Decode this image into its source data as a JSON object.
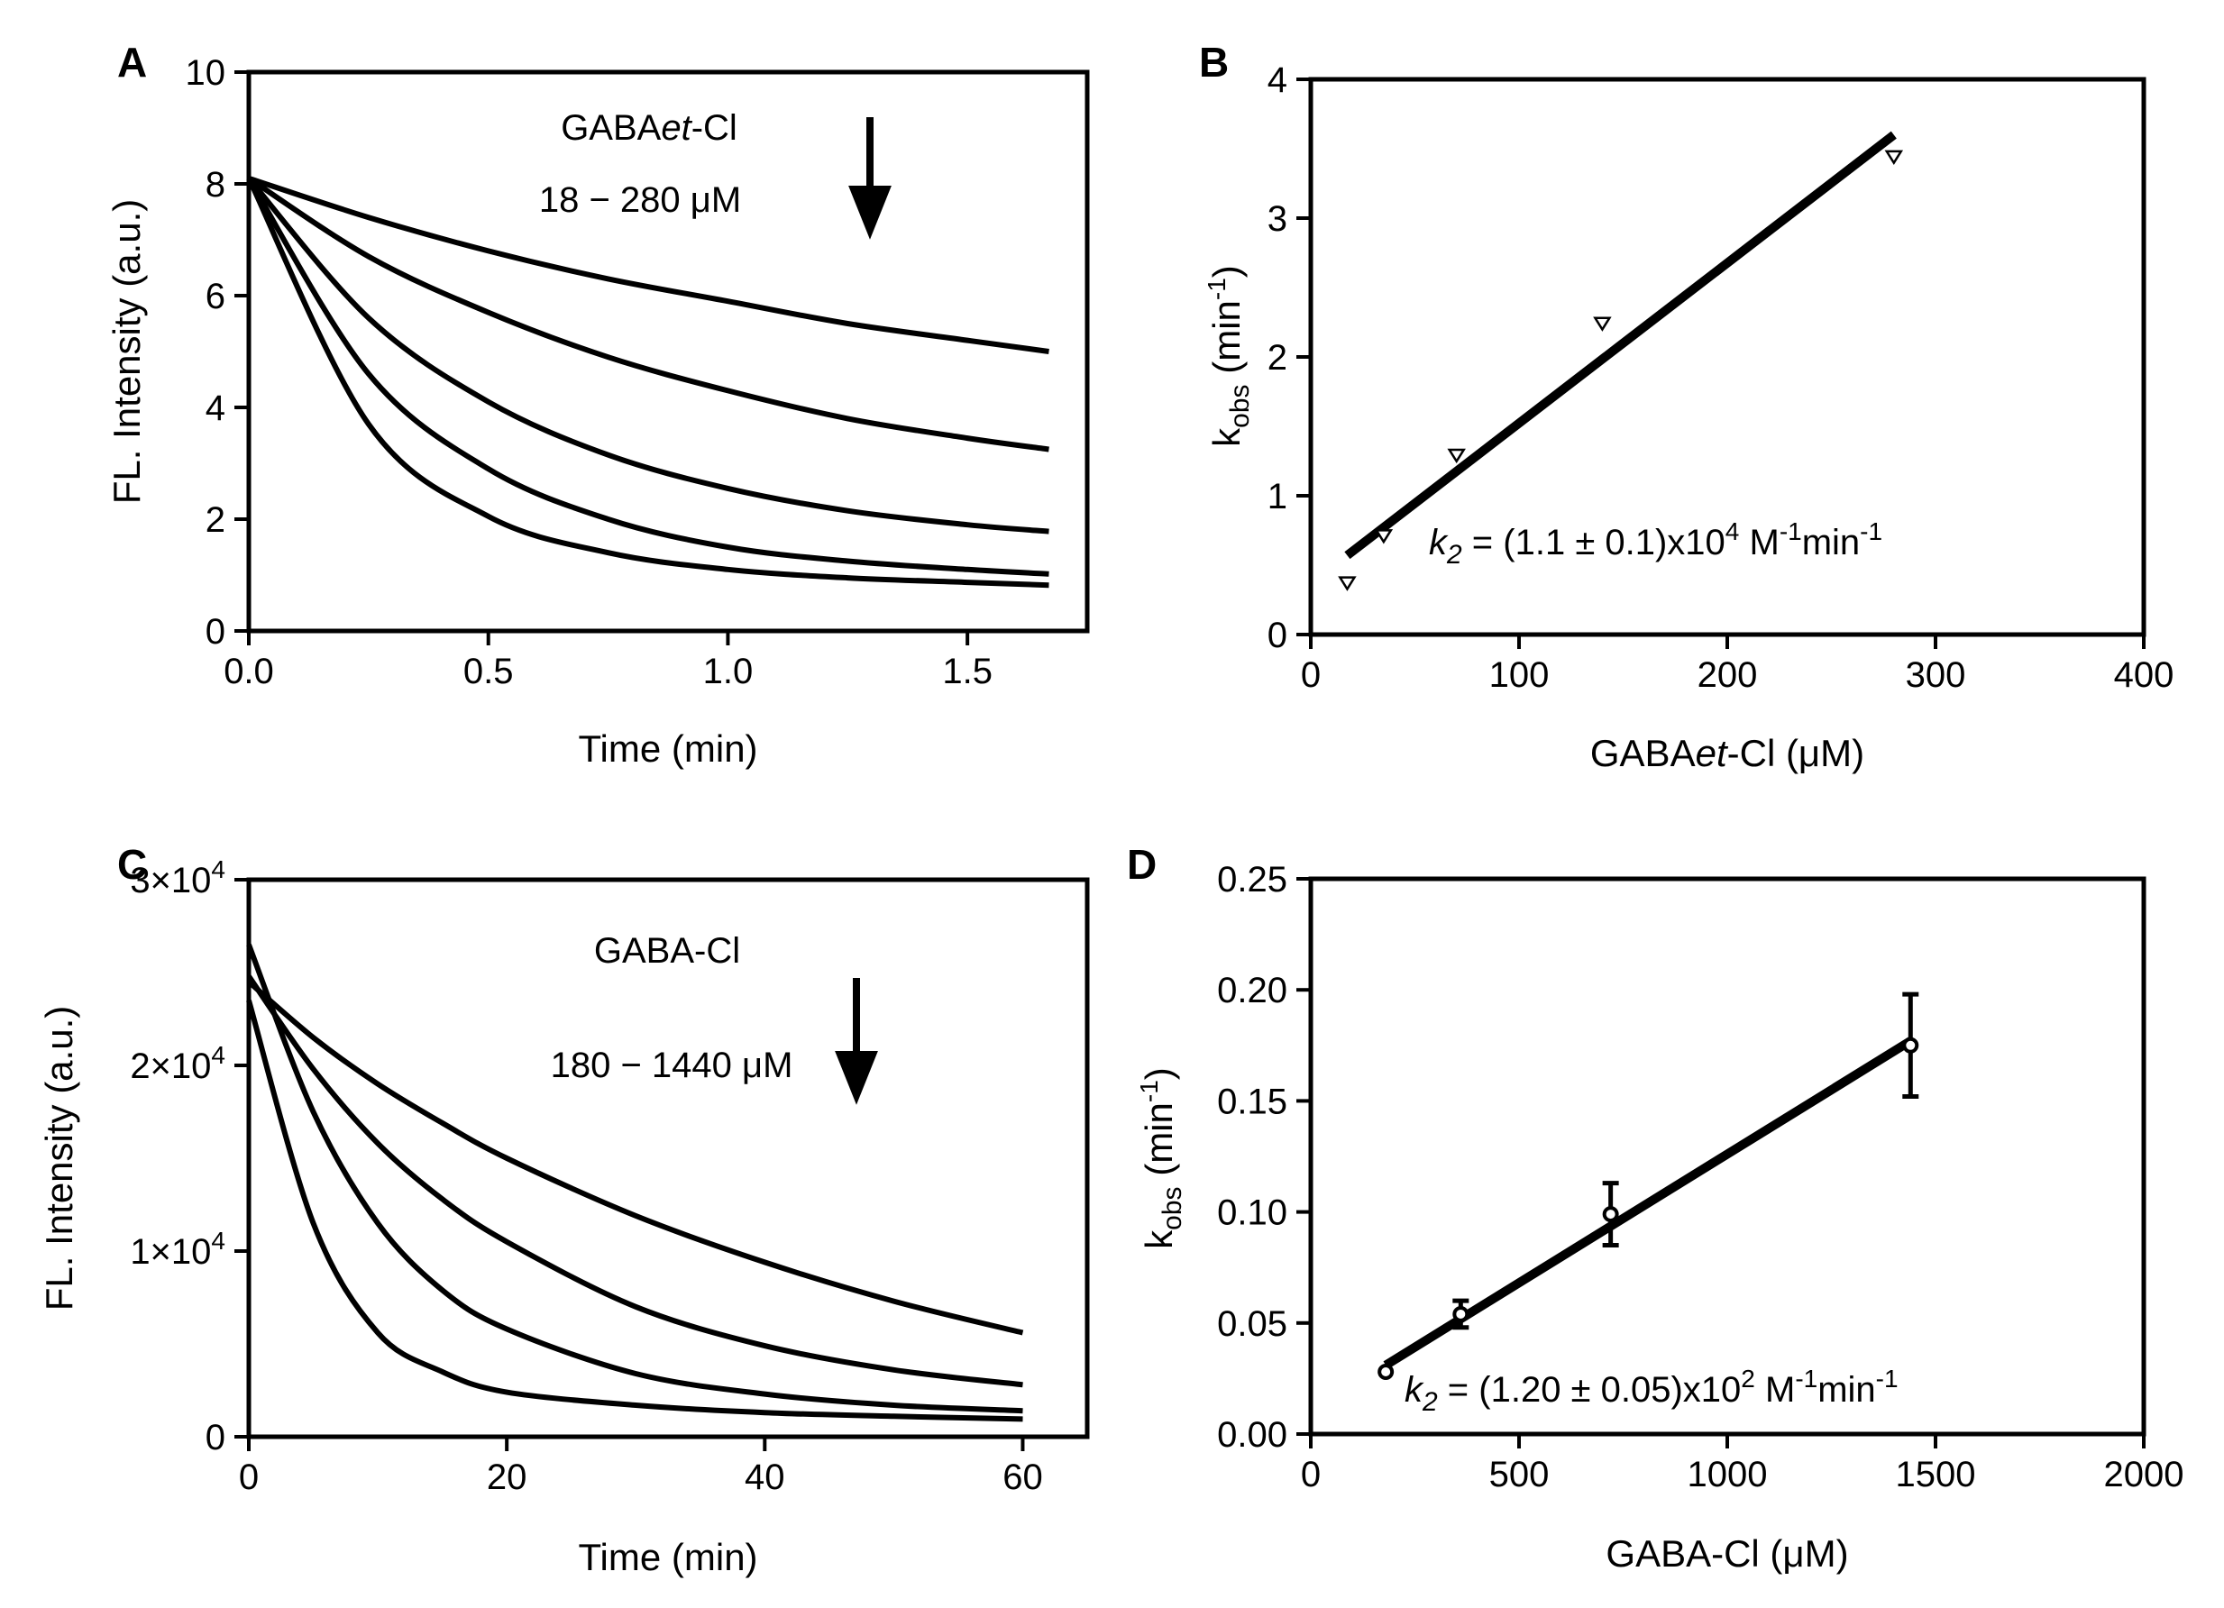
{
  "chart_data": [
    {
      "panel": "A",
      "type": "line",
      "xlabel": "Time (min)",
      "ylabel": "FL. Intensity  (a.u.)",
      "xlim": [
        0,
        1.75
      ],
      "ylim": [
        0,
        10
      ],
      "xticks": [
        0,
        0.5,
        1.0,
        1.5
      ],
      "xtick_labels": [
        "0.0",
        "0.5",
        "1.0",
        "1.5"
      ],
      "yticks": [
        0,
        2,
        4,
        6,
        8,
        10
      ],
      "ytick_labels": [
        "0",
        "2",
        "4",
        "6",
        "8",
        "10"
      ],
      "annotation_lines": [
        "GABAet-Cl",
        "18 − 280 μM"
      ],
      "series": [
        {
          "x": [
            0,
            0.25,
            0.5,
            0.75,
            1.0,
            1.25,
            1.5,
            1.67
          ],
          "values": [
            8.1,
            7.4,
            6.8,
            6.3,
            5.9,
            5.5,
            5.2,
            5.0
          ]
        },
        {
          "x": [
            0,
            0.25,
            0.5,
            0.75,
            1.0,
            1.25,
            1.5,
            1.67
          ],
          "values": [
            8.1,
            6.7,
            5.7,
            4.9,
            4.3,
            3.8,
            3.45,
            3.25
          ]
        },
        {
          "x": [
            0,
            0.25,
            0.5,
            0.75,
            1.0,
            1.25,
            1.5,
            1.67
          ],
          "values": [
            8.1,
            5.6,
            4.1,
            3.15,
            2.55,
            2.15,
            1.9,
            1.78
          ]
        },
        {
          "x": [
            0,
            0.25,
            0.5,
            0.75,
            1.0,
            1.25,
            1.5,
            1.67
          ],
          "values": [
            8.1,
            4.6,
            2.9,
            2.0,
            1.5,
            1.25,
            1.1,
            1.02
          ]
        },
        {
          "x": [
            0,
            0.25,
            0.5,
            0.75,
            1.0,
            1.25,
            1.5,
            1.67
          ],
          "values": [
            8.1,
            3.7,
            2.05,
            1.4,
            1.1,
            0.95,
            0.87,
            0.82
          ]
        }
      ]
    },
    {
      "panel": "B",
      "type": "scatter",
      "xlabel": "GABAet-Cl (μM)",
      "ylabel": "kobs (min-1)",
      "xlim": [
        0,
        400
      ],
      "ylim": [
        0,
        4
      ],
      "xticks": [
        0,
        100,
        200,
        300,
        400
      ],
      "xtick_labels": [
        "0",
        "100",
        "200",
        "300",
        "400"
      ],
      "yticks": [
        0,
        1,
        2,
        3,
        4
      ],
      "ytick_labels": [
        "0",
        "1",
        "2",
        "3",
        "4"
      ],
      "points": {
        "x": [
          17.5,
          35,
          70,
          140,
          280
        ],
        "values": [
          0.38,
          0.72,
          1.3,
          2.25,
          3.45
        ]
      },
      "fit": {
        "x": [
          17.5,
          280
        ],
        "values": [
          0.57,
          3.6
        ]
      },
      "annotation": "k2 = (1.1 ± 0.1)x10^4 M^-1 min^-1"
    },
    {
      "panel": "C",
      "type": "line",
      "xlabel": "Time (min)",
      "ylabel": "FL. Intensity  (a.u.)",
      "xlim": [
        0,
        65
      ],
      "ylim": [
        0,
        30000
      ],
      "xticks": [
        0,
        20,
        40,
        60
      ],
      "xtick_labels": [
        "0",
        "20",
        "40",
        "60"
      ],
      "yticks": [
        0,
        10000,
        20000,
        30000
      ],
      "ytick_labels": [
        "0",
        "1×10^4",
        "2×10^4",
        "3×10^4"
      ],
      "annotation_lines": [
        "GABA-Cl",
        "180 − 1440 μM"
      ],
      "series": [
        {
          "x": [
            0,
            5,
            10,
            15,
            20,
            30,
            40,
            50,
            60
          ],
          "values": [
            24500,
            21500,
            19000,
            16900,
            15000,
            11900,
            9400,
            7300,
            5600
          ]
        },
        {
          "x": [
            0,
            5,
            10,
            15,
            20,
            30,
            40,
            50,
            60
          ],
          "values": [
            24800,
            19800,
            15800,
            12800,
            10500,
            7000,
            4900,
            3600,
            2800
          ]
        },
        {
          "x": [
            0,
            5,
            10,
            15,
            20,
            30,
            40,
            50,
            60
          ],
          "values": [
            26500,
            17500,
            11500,
            7900,
            5800,
            3400,
            2300,
            1700,
            1400
          ]
        },
        {
          "x": [
            0,
            5,
            10,
            15,
            20,
            30,
            40,
            50,
            60
          ],
          "values": [
            23500,
            11500,
            5600,
            3500,
            2400,
            1700,
            1300,
            1100,
            950
          ]
        }
      ]
    },
    {
      "panel": "D",
      "type": "scatter",
      "xlabel": "GABA-Cl (μM)",
      "ylabel": "kobs (min-1)",
      "xlim": [
        0,
        2000
      ],
      "ylim": [
        0,
        0.25
      ],
      "xticks": [
        0,
        500,
        1000,
        1500,
        2000
      ],
      "xtick_labels": [
        "0",
        "500",
        "1000",
        "1500",
        "2000"
      ],
      "yticks": [
        0,
        0.05,
        0.1,
        0.15,
        0.2,
        0.25
      ],
      "ytick_labels": [
        "0.00",
        "0.05",
        "0.10",
        "0.15",
        "0.20",
        "0.25"
      ],
      "points": {
        "x": [
          180,
          360,
          720,
          1440
        ],
        "values": [
          0.028,
          0.054,
          0.099,
          0.175
        ],
        "errors": [
          0.0,
          0.006,
          0.014,
          0.023
        ]
      },
      "fit": {
        "x": [
          180,
          1440
        ],
        "values": [
          0.031,
          0.177
        ]
      },
      "annotation": "k2 = (1.20 ± 0.05)x10^2 M^-1 min^-1"
    }
  ]
}
